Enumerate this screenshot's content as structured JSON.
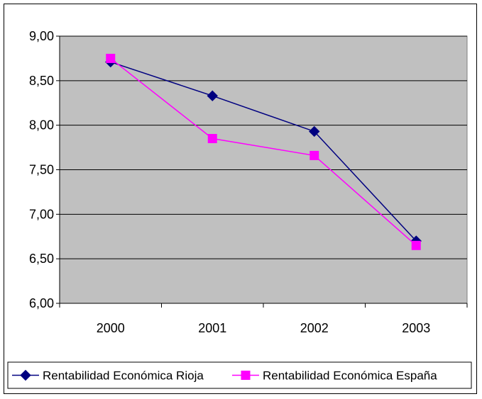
{
  "chart_data": {
    "type": "line",
    "categories": [
      "2000",
      "2001",
      "2002",
      "2003"
    ],
    "series": [
      {
        "name": "Rentabilidad Económica Rioja",
        "values": [
          8.71,
          8.33,
          7.93,
          6.7
        ],
        "color": "#000080",
        "marker": "diamond"
      },
      {
        "name": "Rentabilidad Económica España",
        "values": [
          8.75,
          7.85,
          7.66,
          6.65
        ],
        "color": "#FF00FF",
        "marker": "square"
      }
    ],
    "ylim": [
      6.0,
      9.0
    ],
    "yticks": [
      "6,00",
      "6,50",
      "7,00",
      "7,50",
      "8,00",
      "8,50",
      "9,00"
    ],
    "grid": true,
    "legend_position": "bottom",
    "plot_background": "#C0C0C0"
  }
}
